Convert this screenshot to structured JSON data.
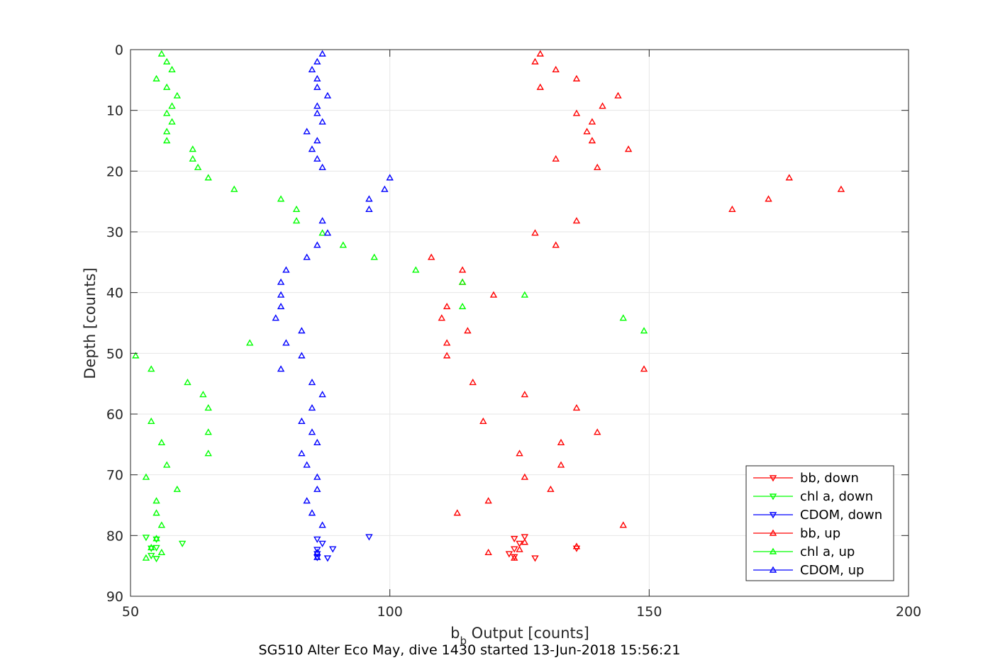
{
  "chart_data": {
    "type": "scatter",
    "xlabel": "b",
    "xlabel_sub": "b",
    "xlabel_rest": " Output [counts]",
    "ylabel": "Depth [counts]",
    "title": "SG510 Alter Eco May, dive 1430 started 13-Jun-2018 15:56:21",
    "xlim": [
      50,
      200
    ],
    "ylim": [
      0,
      90
    ],
    "y_reversed": true,
    "grid": true,
    "legend_position": "bottom-right",
    "x_ticks": [
      "50",
      "100",
      "150",
      "200"
    ],
    "y_ticks": [
      "0",
      "10",
      "20",
      "30",
      "40",
      "50",
      "60",
      "70",
      "80",
      "90"
    ],
    "series": [
      {
        "name": "bb, down",
        "color": "#ff0000",
        "marker": "triangle-down",
        "x": [
          124,
          125,
          126,
          124,
          124,
          123,
          128,
          136
        ],
        "y": [
          80.5,
          81.3,
          80.2,
          82.2,
          83.5,
          83.0,
          83.7,
          82.1
        ]
      },
      {
        "name": "chl a, down",
        "color": "#00ff00",
        "marker": "triangle-down",
        "x": [
          53,
          54,
          55,
          54,
          55,
          60,
          55
        ],
        "y": [
          80.3,
          82.1,
          82.0,
          83.3,
          83.8,
          81.3,
          80.6
        ]
      },
      {
        "name": "CDOM, down",
        "color": "#0000ff",
        "marker": "triangle-down",
        "x": [
          86,
          87,
          86,
          86,
          86,
          89,
          88,
          96
        ],
        "y": [
          80.6,
          81.3,
          82.3,
          83.0,
          83.6,
          82.2,
          83.7,
          80.2
        ]
      },
      {
        "name": "bb, up",
        "color": "#ff0000",
        "marker": "triangle-up",
        "x": [
          129,
          128,
          132,
          136,
          129,
          144,
          141,
          136,
          139,
          138,
          139,
          146,
          132,
          140,
          177,
          187,
          173,
          166,
          136,
          128,
          132,
          108,
          114,
          114,
          120,
          111,
          110,
          115,
          111,
          111,
          149,
          116,
          126,
          136,
          118,
          140,
          133,
          125,
          133,
          126,
          131,
          119,
          113,
          145,
          136,
          119,
          124,
          125,
          126
        ],
        "y": [
          0.7,
          2.0,
          3.3,
          4.8,
          6.2,
          7.6,
          9.3,
          10.5,
          11.9,
          13.5,
          15.0,
          16.4,
          18.0,
          19.4,
          21.1,
          23.0,
          24.6,
          26.3,
          28.2,
          30.2,
          32.2,
          34.2,
          36.3,
          38.3,
          40.4,
          42.3,
          44.2,
          46.3,
          48.3,
          50.4,
          52.6,
          54.8,
          56.8,
          59.0,
          61.2,
          63.0,
          64.7,
          66.5,
          68.4,
          70.4,
          72.4,
          74.3,
          76.3,
          78.3,
          81.8,
          82.8,
          83.7,
          82.3,
          81.1
        ]
      },
      {
        "name": "chl a, up",
        "color": "#00ff00",
        "marker": "triangle-up",
        "x": [
          56,
          57,
          58,
          55,
          57,
          59,
          58,
          57,
          58,
          57,
          57,
          62,
          62,
          63,
          65,
          70,
          79,
          82,
          82,
          87,
          91,
          97,
          105,
          114,
          126,
          114,
          145,
          149,
          73,
          51,
          54,
          61,
          64,
          65,
          54,
          65,
          56,
          65,
          57,
          53,
          59,
          55,
          55,
          56,
          55,
          56,
          53,
          54
        ],
        "y": [
          0.7,
          2.0,
          3.3,
          4.8,
          6.2,
          7.6,
          9.3,
          10.5,
          11.9,
          13.5,
          15.0,
          16.4,
          18.0,
          19.4,
          21.1,
          23.0,
          24.6,
          26.3,
          28.2,
          30.2,
          32.2,
          34.2,
          36.3,
          38.3,
          40.4,
          42.3,
          44.2,
          46.3,
          48.3,
          50.4,
          52.6,
          54.8,
          56.8,
          59.0,
          61.2,
          63.0,
          64.7,
          66.5,
          68.4,
          70.4,
          72.4,
          74.3,
          76.3,
          78.3,
          80.5,
          82.8,
          83.7,
          82.0
        ]
      },
      {
        "name": "CDOM, up",
        "color": "#0000ff",
        "marker": "triangle-up",
        "x": [
          87,
          86,
          85,
          86,
          86,
          88,
          86,
          86,
          87,
          84,
          86,
          85,
          86,
          87,
          100,
          99,
          96,
          96,
          87,
          88,
          86,
          84,
          80,
          79,
          79,
          79,
          78,
          83,
          80,
          83,
          79,
          85,
          87,
          85,
          83,
          85,
          86,
          83,
          84,
          86,
          86,
          84,
          85,
          87,
          86,
          86
        ],
        "y": [
          0.7,
          2.0,
          3.3,
          4.8,
          6.2,
          7.6,
          9.3,
          10.5,
          11.9,
          13.5,
          15.0,
          16.4,
          18.0,
          19.4,
          21.1,
          23.0,
          24.6,
          26.3,
          28.2,
          30.2,
          32.2,
          34.2,
          36.3,
          38.3,
          40.4,
          42.3,
          44.2,
          46.3,
          48.3,
          50.4,
          52.6,
          54.8,
          56.8,
          59.0,
          61.2,
          63.0,
          64.7,
          66.5,
          68.4,
          70.4,
          72.4,
          74.3,
          76.3,
          78.3,
          82.8,
          83.6
        ]
      }
    ]
  }
}
